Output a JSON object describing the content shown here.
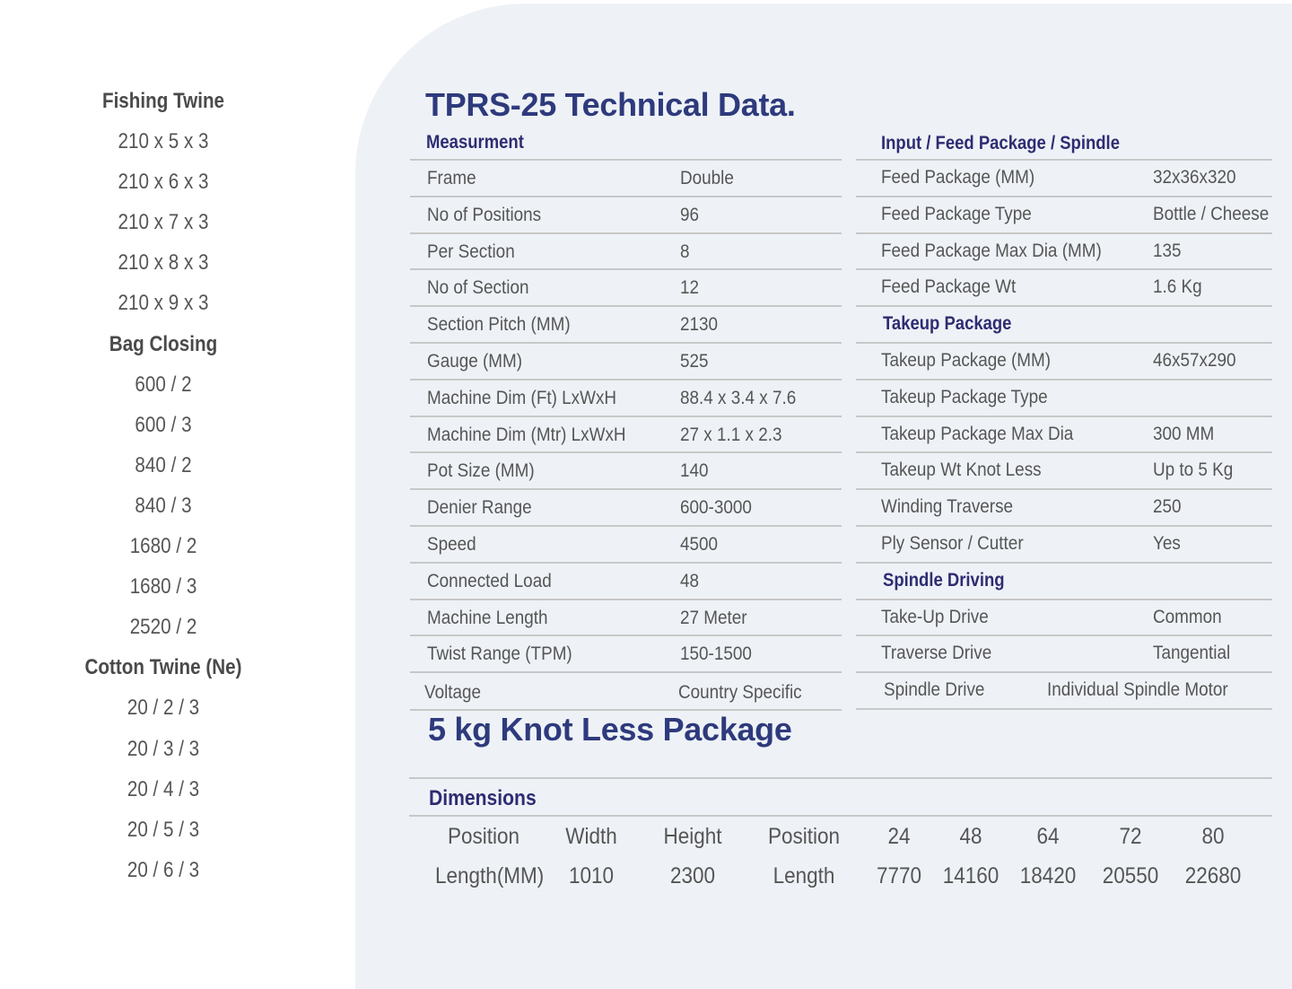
{
  "left_list": [
    {
      "text": "Fishing Twine",
      "head": true
    },
    {
      "text": "210 x 5 x 3"
    },
    {
      "text": "210 x 6 x 3"
    },
    {
      "text": "210 x 7 x 3"
    },
    {
      "text": "210 x 8 x 3"
    },
    {
      "text": "210 x 9 x 3"
    },
    {
      "text": "Bag Closing",
      "head": true
    },
    {
      "text": "600 / 2"
    },
    {
      "text": "600 / 3"
    },
    {
      "text": "840 / 2"
    },
    {
      "text": "840 / 3"
    },
    {
      "text": "1680 / 2"
    },
    {
      "text": "1680 / 3"
    },
    {
      "text": "2520 / 2"
    },
    {
      "text": "Cotton Twine (Ne)",
      "head": true
    },
    {
      "text": "20 / 2 / 3"
    },
    {
      "text": "20 / 3 / 3"
    },
    {
      "text": "20 / 4 / 3"
    },
    {
      "text": "20 / 5 / 3"
    },
    {
      "text": "20 / 6 / 3"
    }
  ],
  "title": "TPRS-25 Technical Data.",
  "measurement": {
    "heading": "Measurment",
    "rows": [
      [
        "Frame",
        "Double"
      ],
      [
        "No of Positions",
        "96"
      ],
      [
        "Per Section",
        "8"
      ],
      [
        "No of Section",
        "12"
      ],
      [
        "Section Pitch (MM)",
        "2130"
      ],
      [
        "Gauge (MM)",
        "525"
      ],
      [
        "Machine Dim (Ft) LxWxH",
        "88.4 x 3.4 x 7.6"
      ],
      [
        "Machine Dim (Mtr) LxWxH",
        "27 x 1.1 x 2.3"
      ],
      [
        "Pot Size (MM)",
        "140"
      ],
      [
        "Denier Range",
        "600-3000"
      ],
      [
        "Speed",
        "4500"
      ],
      [
        "Connected Load",
        "48"
      ],
      [
        "Machine Length",
        "27 Meter"
      ],
      [
        "Twist Range (TPM)",
        "150-1500"
      ],
      [
        "Voltage",
        "Country Specific"
      ]
    ]
  },
  "input": {
    "heading": "Input / Feed Package / Spindle",
    "rows": [
      {
        "k": "Feed Package (MM)",
        "v": "32x36x320"
      },
      {
        "k": "Feed Package Type",
        "v": "Bottle / Cheese"
      },
      {
        "k": "Feed Package Max Dia (MM)",
        "v": "135"
      },
      {
        "k": "Feed Package Wt",
        "v": "1.6 Kg"
      },
      {
        "sub": "Takeup Package"
      },
      {
        "k": "Takeup Package (MM)",
        "v": "46x57x290"
      },
      {
        "k": "Takeup Package Type",
        "v": ""
      },
      {
        "k": "Takeup Package Max Dia",
        "v": "300 MM"
      },
      {
        "k": "Takeup Wt Knot Less",
        "v": "Up to 5 Kg"
      },
      {
        "k": "Winding Traverse",
        "v": "250"
      },
      {
        "k": "Ply Sensor / Cutter",
        "v": "Yes"
      },
      {
        "sub": "Spindle Driving"
      },
      {
        "k": "Take-Up Drive",
        "v": "Common"
      },
      {
        "k": "Traverse Drive",
        "v": "Tangential"
      },
      {
        "k": "Spindle Drive",
        "v": "Individual Spindle Motor",
        "motor": true
      }
    ]
  },
  "title2": "5 kg Knot Less Package",
  "dimensions": {
    "heading": "Dimensions",
    "row1": [
      "Position",
      "Width",
      "Height",
      "Position",
      "24",
      "48",
      "64",
      "72",
      "80"
    ],
    "row2": [
      "Length(MM)",
      "1010",
      "2300",
      "Length",
      "7770",
      "14160",
      "18420",
      "20550",
      "22680"
    ]
  }
}
